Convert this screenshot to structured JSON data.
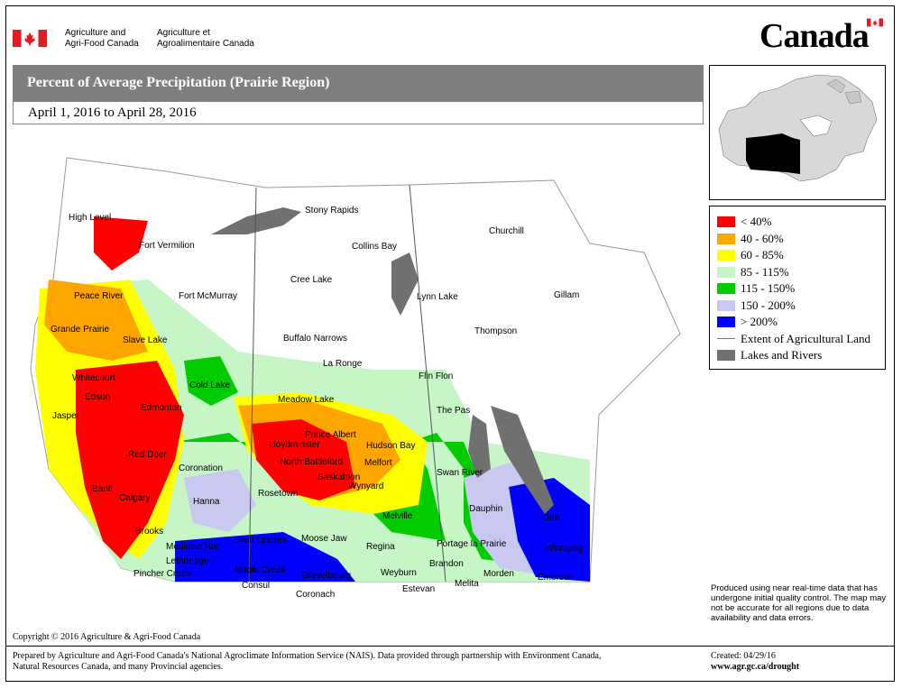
{
  "header": {
    "dept_en_line1": "Agriculture and",
    "dept_en_line2": "Agri-Food Canada",
    "dept_fr_line1": "Agriculture et",
    "dept_fr_line2": "Agroalimentaire Canada",
    "wordmark": "Canada"
  },
  "title": "Percent of Average Precipitation (Prairie Region)",
  "date_range": "April 1, 2016 to April 28, 2016",
  "legend": {
    "items": [
      {
        "label": "< 40%",
        "color": "#ff0000"
      },
      {
        "label": "40 - 60%",
        "color": "#ffa500"
      },
      {
        "label": "60 - 85%",
        "color": "#ffff00"
      },
      {
        "label": "85 - 115%",
        "color": "#c6f5c6"
      },
      {
        "label": "115 - 150%",
        "color": "#00cc00"
      },
      {
        "label": "150 - 200%",
        "color": "#c8c8f0"
      },
      {
        "label": "> 200%",
        "color": "#0000ff"
      }
    ],
    "line_label": "Extent of Agricultural Land",
    "lakes_label": "Lakes and Rivers",
    "lakes_color": "#707070"
  },
  "note": "Produced using near real-time data that has undergone initial quality control. The map may not be accurate for all regions due to data availability and data errors.",
  "copyright": "Copyright © 2016 Agriculture & Agri-Food Canada",
  "prepared": "Prepared by Agriculture and Agri-Food Canada's National Agroclimate Information Service (NAIS). Data provided through partnership with Environment Canada, Natural Resources Canada, and many Provincial agencies.",
  "created": "Created: 04/29/16",
  "url": "www.agr.gc.ca/drought",
  "places": {
    "high_level": "High Level",
    "fort_vermilion": "Fort Vermilion",
    "stony_rapids": "Stony Rapids",
    "collins_bay": "Collins Bay",
    "churchill": "Churchill",
    "peace_river": "Peace River",
    "fort_mcmurray": "Fort McMurray",
    "cree_lake": "Cree Lake",
    "lynn_lake": "Lynn Lake",
    "gillam": "Gillam",
    "grande_prairie": "Grande Prairie",
    "slave_lake": "Slave Lake",
    "buffalo_narrows": "Buffalo Narrows",
    "thompson": "Thompson",
    "whitecourt": "Whitecourt",
    "la_ronge": "La Ronge",
    "flin_flon": "Flin Flon",
    "edson": "Edson",
    "cold_lake": "Cold Lake",
    "meadow_lake": "Meadow Lake",
    "jasper": "Jasper",
    "edmonton": "Edmonton",
    "the_pas": "The Pas",
    "prince_albert": "Prince Albert",
    "lloydminster": "Lloydminster",
    "hudson_bay": "Hudson Bay",
    "red_deer": "Red Deer",
    "north_battleford": "North Battleford",
    "melfort": "Melfort",
    "coronation": "Coronation",
    "saskatoon": "Saskatoon",
    "swan_river": "Swan River",
    "banff": "Banff",
    "wynyard": "Wynyard",
    "calgary": "Calgary",
    "hanna": "Hanna",
    "rosetown": "Rosetown",
    "dauphin": "Dauphin",
    "gimli": "Gimli",
    "melville": "Melville",
    "brooks": "Brooks",
    "medicine_hat": "Medicine Hat",
    "swift_current": "Swift Current",
    "moose_jaw": "Moose Jaw",
    "regina": "Regina",
    "portage": "Portage la Prairie",
    "winnipeg": "Winnipeg",
    "lethbridge": "Lethbridge",
    "brandon": "Brandon",
    "pincher_creek": "Pincher Creek",
    "maple_creek": "Maple Creek",
    "gravelbourg": "Gravelbourg",
    "weyburn": "Weyburn",
    "morden": "Morden",
    "emerson": "Emerson",
    "consul": "Consul",
    "estevan": "Estevan",
    "melita": "Melita",
    "coronach": "Coronach"
  }
}
